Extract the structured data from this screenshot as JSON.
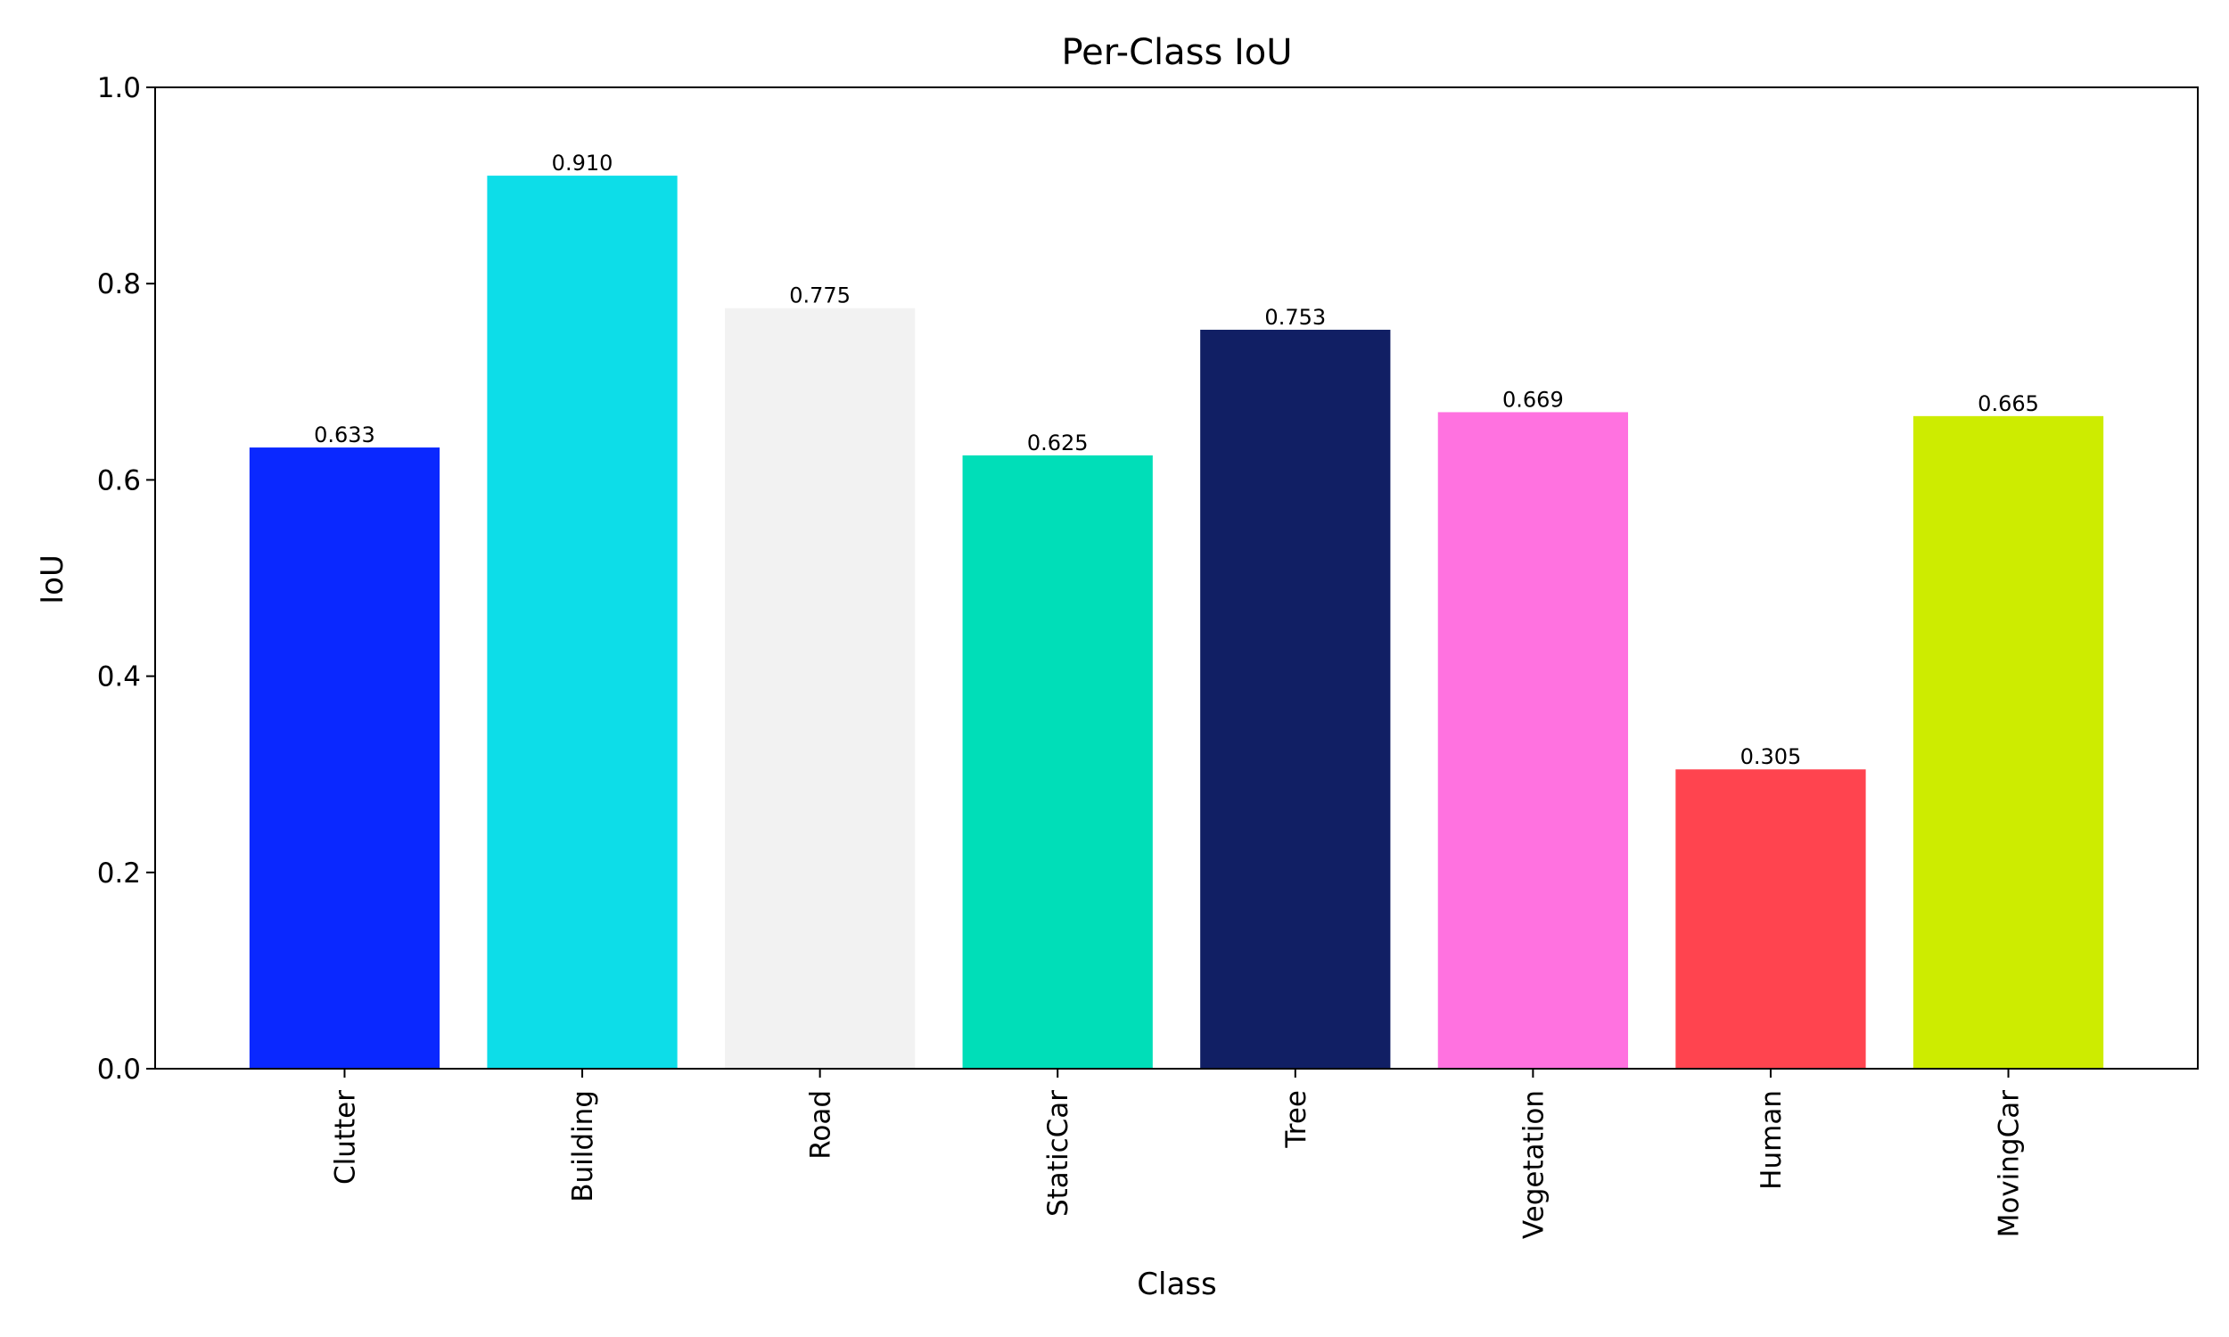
{
  "chart_data": {
    "type": "bar",
    "title": "Per-Class IoU",
    "x_label": "Class",
    "y_label": "IoU",
    "categories": [
      "Clutter",
      "Building",
      "Road",
      "StaticCar",
      "Tree",
      "Vegetation",
      "Human",
      "MovingCar"
    ],
    "values": [
      0.633,
      0.91,
      0.775,
      0.625,
      0.753,
      0.669,
      0.305,
      0.665
    ],
    "value_labels": [
      "0.633",
      "0.910",
      "0.775",
      "0.625",
      "0.753",
      "0.669",
      "0.305",
      "0.665"
    ],
    "colors": [
      "#0a28ff",
      "#0ddde8",
      "#f2f2f2",
      "#00deb8",
      "#111f64",
      "#ff72e0",
      "#ff444f",
      "#cdec00"
    ],
    "ylim": [
      0,
      1
    ],
    "yticks": [
      {
        "value": 0,
        "label": "0.0"
      },
      0.2,
      0.4,
      0.6,
      0.8,
      {
        "value": 1,
        "label": "1.0"
      }
    ],
    "grid": false
  }
}
